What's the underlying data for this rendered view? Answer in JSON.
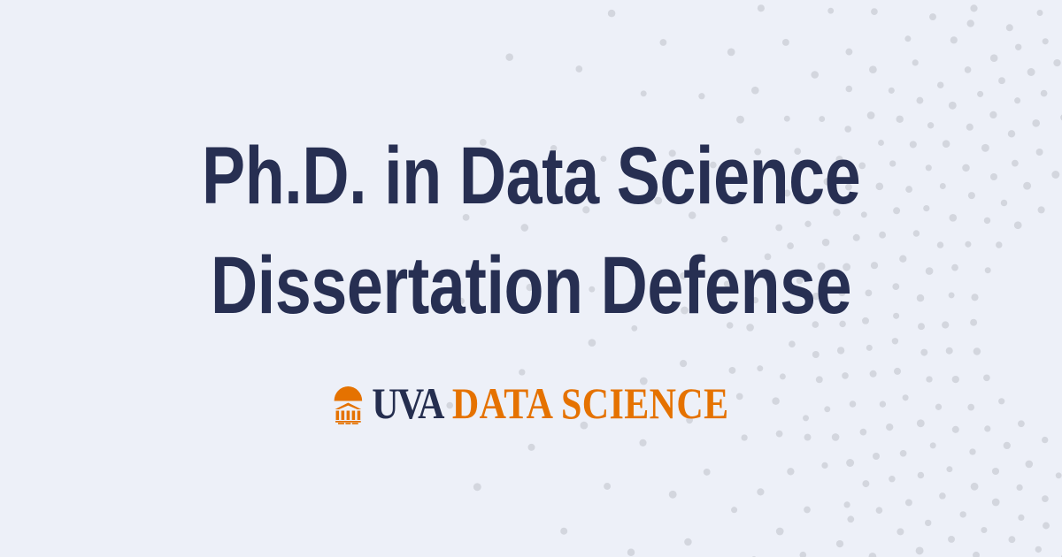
{
  "banner": {
    "title_line1": "Ph.D. in Data Science",
    "title_line2": "Dissertation Defense"
  },
  "logo": {
    "icon": "rotunda-icon",
    "brand_prefix": "UVA",
    "brand_name": "DATA SCIENCE"
  },
  "decoration": {
    "style": "dotted-arcs"
  },
  "colors": {
    "background": "#edf0f8",
    "title_navy": "#272f52",
    "logo_navy": "#252e4f",
    "logo_orange": "#e57200",
    "dot_gray": "#d3d6de"
  }
}
